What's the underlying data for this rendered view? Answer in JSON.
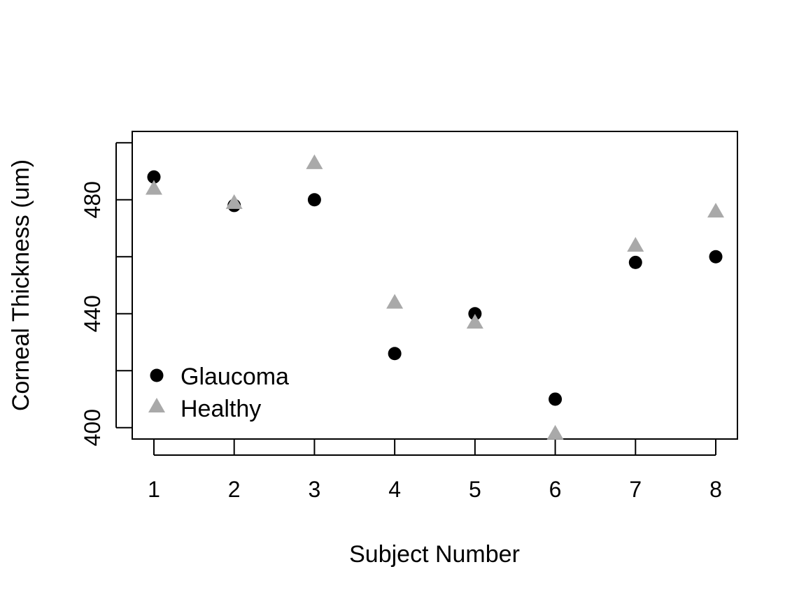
{
  "chart_data": {
    "type": "scatter",
    "title": "",
    "xlabel": "Subject Number",
    "ylabel": "Corneal Thickness (um)",
    "x": [
      1,
      2,
      3,
      4,
      5,
      6,
      7,
      8
    ],
    "xlim": [
      0.73,
      8.27
    ],
    "ylim": [
      396,
      504
    ],
    "x_ticks": [
      1,
      2,
      3,
      4,
      5,
      6,
      7,
      8
    ],
    "y_ticks": [
      400,
      420,
      440,
      460,
      480,
      500
    ],
    "y_tick_labels": [
      "400",
      "",
      "440",
      "",
      "480",
      ""
    ],
    "grid": false,
    "legend_position": "bottom-left",
    "series": [
      {
        "name": "Glaucoma",
        "marker": "circle",
        "color": "#000000",
        "values": [
          488,
          478,
          480,
          426,
          440,
          410,
          458,
          460
        ]
      },
      {
        "name": "Healthy",
        "marker": "triangle",
        "color": "#a9a9a9",
        "values": [
          484,
          479,
          493,
          444,
          437,
          398,
          464,
          476
        ]
      }
    ]
  }
}
